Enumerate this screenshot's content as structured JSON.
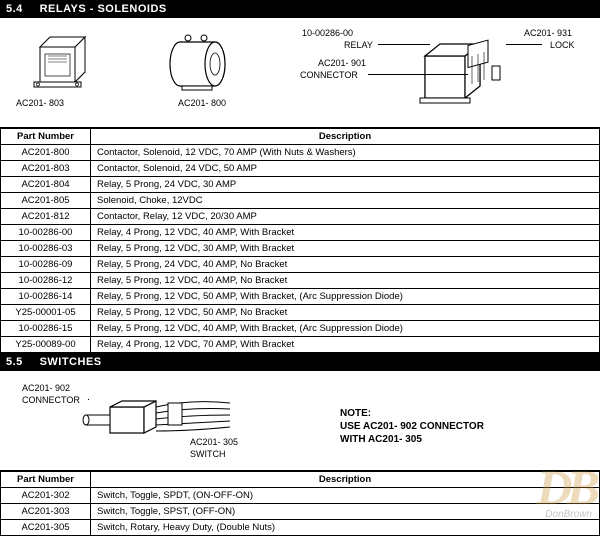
{
  "section_relays": {
    "number": "5.4",
    "title": "RELAYS - SOLENOIDS",
    "labels": {
      "ac201_803": "AC201- 803",
      "ac201_800": "AC201- 800",
      "relay_pn": "10-00286-00",
      "relay_word": "RELAY",
      "ac201_901": "AC201- 901",
      "connector_word": "CONNECTOR",
      "ac201_931": "AC201- 931",
      "lock_word": "LOCK"
    },
    "columns": {
      "part_number": "Part Number",
      "description": "Description"
    },
    "rows": [
      {
        "pn": "AC201-800",
        "desc": "Contactor, Solenoid, 12 VDC, 70 AMP (With Nuts & Washers)"
      },
      {
        "pn": "AC201-803",
        "desc": "Contactor, Solenoid, 24 VDC, 50 AMP"
      },
      {
        "pn": "AC201-804",
        "desc": "Relay, 5 Prong, 24 VDC, 30 AMP"
      },
      {
        "pn": "AC201-805",
        "desc": "Solenoid, Choke, 12VDC"
      },
      {
        "pn": "AC201-812",
        "desc": "Contactor, Relay, 12 VDC, 20/30 AMP"
      },
      {
        "pn": "10-00286-00",
        "desc": "Relay, 4 Prong, 12 VDC, 40 AMP, With Bracket"
      },
      {
        "pn": "10-00286-03",
        "desc": "Relay, 5 Prong, 12 VDC, 30 AMP, With Bracket"
      },
      {
        "pn": "10-00286-09",
        "desc": "Relay, 5 Prong, 24 VDC, 40 AMP, No Bracket"
      },
      {
        "pn": "10-00286-12",
        "desc": "Relay, 5 Prong, 12 VDC, 40 AMP, No Bracket"
      },
      {
        "pn": "10-00286-14",
        "desc": "Relay, 5 Prong, 12 VDC, 50 AMP, With Bracket, (Arc Suppression Diode)"
      },
      {
        "pn": "Y25-00001-05",
        "desc": "Relay, 5 Prong, 12 VDC, 50 AMP, No Bracket"
      },
      {
        "pn": "10-00286-15",
        "desc": "Relay, 5 Prong, 12 VDC, 40 AMP, With Bracket, (Arc Suppression Diode)"
      },
      {
        "pn": "Y25-00089-00",
        "desc": "Relay, 4 Prong, 12 VDC, 70 AMP, With Bracket"
      }
    ]
  },
  "section_switches": {
    "number": "5.5",
    "title": "SWITCHES",
    "labels": {
      "ac201_902": "AC201- 902",
      "connector_word": "CONNECTOR",
      "ac201_305": "AC201- 305",
      "switch_word": "SWITCH",
      "note_title": "NOTE:",
      "note_body": "USE AC201- 902 CONNECTOR\nWITH AC201- 305"
    },
    "columns": {
      "part_number": "Part Number",
      "description": "Description"
    },
    "rows": [
      {
        "pn": "AC201-302",
        "desc": "Switch, Toggle, SPDT, (ON-OFF-ON)"
      },
      {
        "pn": "AC201-303",
        "desc": "Switch, Toggle, SPST, (OFF-ON)"
      },
      {
        "pn": "AC201-305",
        "desc": "Switch, Rotary, Heavy Duty, (Double Nuts)"
      }
    ]
  },
  "watermark": {
    "logo": "DB",
    "text": "DonBrown"
  }
}
